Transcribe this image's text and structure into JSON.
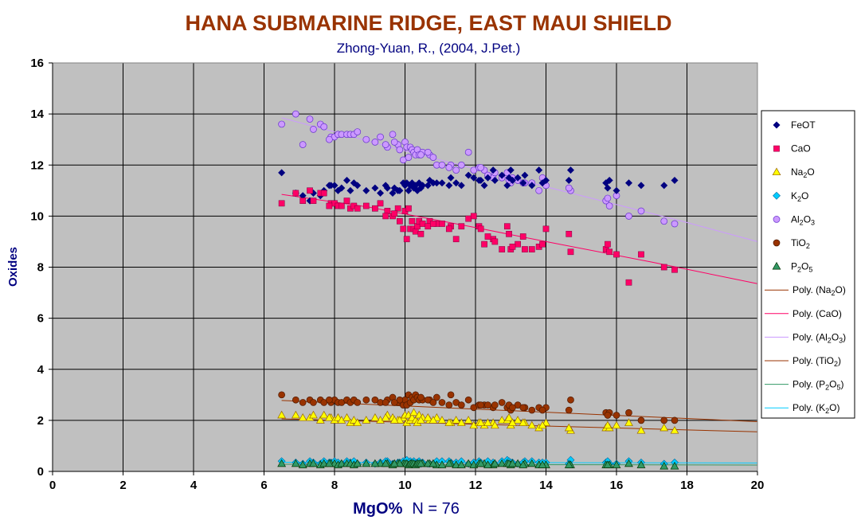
{
  "chart_data": {
    "type": "scatter",
    "title": "HANA SUBMARINE RIDGE, EAST MAUI SHIELD",
    "subtitle": "Zhong-Yuan, R., (2004, J.Pet.)",
    "xlabel": "MgO%",
    "xlabel_note": "N = 76",
    "ylabel": "Oxides",
    "xlim": [
      0,
      20
    ],
    "ylim": [
      0,
      16
    ],
    "x_ticks": [
      "0",
      "2",
      "4",
      "6",
      "8",
      "10",
      "12",
      "14",
      "16",
      "18",
      "20"
    ],
    "y_ticks": [
      "0",
      "2",
      "4",
      "6",
      "8",
      "10",
      "12",
      "14",
      "16"
    ],
    "grid": true,
    "legend_position": "right",
    "background_color": "#c0c0c0",
    "mgo": [
      6.5,
      6.9,
      7.1,
      7.3,
      7.4,
      7.6,
      7.7,
      7.9,
      8.0,
      8.1,
      8.2,
      8.35,
      8.45,
      8.55,
      8.65,
      9.3,
      9.5,
      9.65,
      9.8,
      9.95,
      10.0,
      10.05,
      10.1,
      10.15,
      10.2,
      10.25,
      10.3,
      10.35,
      10.4,
      10.5,
      10.7,
      10.9,
      11.3,
      11.8,
      11.95,
      12.1,
      12.25,
      12.5,
      12.75,
      12.9,
      13.0,
      13.2,
      13.4,
      13.8,
      14.7,
      15.7,
      15.8,
      16.35,
      16.7,
      17.35,
      17.65,
      9.45,
      9.85,
      10.45,
      11.25,
      11.45,
      12.55,
      12.95,
      13.35,
      14.65,
      15.75,
      8.9,
      10.65,
      11.05,
      13.05,
      9.15,
      7.85,
      12.35,
      10.8,
      14.0,
      16.0,
      13.6,
      12.15,
      9.7,
      11.6,
      13.9
    ],
    "series": [
      {
        "name": "FeOT",
        "color": "#000080",
        "marker": "diamond",
        "values": [
          11.7,
          10.9,
          10.8,
          10.6,
          10.9,
          10.8,
          11.0,
          11.2,
          11.2,
          11.0,
          11.1,
          11.4,
          11.0,
          11.3,
          11.2,
          10.9,
          11.1,
          10.9,
          11.0,
          11.3,
          11.2,
          11.3,
          11.0,
          11.2,
          11.3,
          11.1,
          11.2,
          11.0,
          11.3,
          11.2,
          11.4,
          11.3,
          11.5,
          11.6,
          11.5,
          11.4,
          11.2,
          11.8,
          11.6,
          11.2,
          11.8,
          11.5,
          11.6,
          11.8,
          11.8,
          11.3,
          11.4,
          11.3,
          11.2,
          11.2,
          11.4,
          11.2,
          11.0,
          11.1,
          11.2,
          11.3,
          11.4,
          11.5,
          11.3,
          11.4,
          11.1,
          11.0,
          11.2,
          11.3,
          11.4,
          11.1,
          11.2,
          11.5,
          11.3,
          11.4,
          11.0,
          11.2,
          11.4,
          11.1,
          11.2,
          11.3
        ]
      },
      {
        "name": "CaO",
        "color": "#ff0066",
        "marker": "square",
        "values": [
          10.5,
          10.9,
          10.6,
          11.0,
          10.6,
          10.9,
          10.9,
          10.5,
          10.5,
          10.4,
          10.4,
          10.6,
          10.3,
          10.4,
          10.3,
          10.5,
          10.2,
          10.0,
          10.3,
          9.5,
          10.2,
          9.1,
          10.3,
          9.5,
          9.8,
          9.5,
          9.4,
          9.6,
          9.8,
          9.7,
          9.8,
          9.7,
          9.6,
          9.9,
          10.0,
          9.6,
          8.9,
          9.1,
          8.7,
          9.6,
          8.7,
          8.9,
          8.7,
          8.8,
          8.6,
          8.7,
          8.6,
          7.4,
          8.5,
          8.0,
          7.9,
          10.0,
          9.8,
          9.3,
          9.5,
          9.1,
          9.0,
          9.3,
          9.2,
          9.3,
          8.9,
          10.4,
          9.6,
          9.7,
          8.8,
          10.3,
          10.4,
          9.2,
          9.7,
          9.5,
          8.5,
          8.7,
          9.5,
          10.1,
          9.6,
          8.9
        ]
      },
      {
        "name": "Na2O",
        "color": "#ffff00",
        "marker": "triangle",
        "values": [
          2.2,
          2.2,
          2.1,
          2.1,
          2.2,
          2.0,
          2.2,
          2.1,
          2.0,
          2.1,
          2.0,
          2.1,
          1.9,
          2.0,
          1.9,
          2.0,
          2.2,
          2.1,
          2.0,
          2.1,
          2.2,
          1.9,
          2.2,
          2.0,
          2.1,
          2.3,
          2.0,
          1.9,
          2.2,
          2.1,
          2.0,
          2.1,
          1.9,
          2.0,
          1.8,
          1.9,
          1.8,
          1.9,
          2.0,
          2.0,
          1.8,
          2.0,
          1.9,
          1.7,
          1.6,
          1.7,
          1.7,
          1.9,
          1.6,
          1.7,
          1.6,
          2.1,
          2.0,
          2.0,
          1.9,
          2.0,
          1.8,
          2.1,
          1.9,
          1.7,
          1.8,
          2.0,
          2.1,
          2.0,
          1.9,
          2.1,
          2.1,
          1.9,
          2.0,
          1.9,
          1.8,
          1.8,
          1.9,
          2.0,
          1.9,
          1.8
        ]
      },
      {
        "name": "K2O",
        "color": "#00ccff",
        "marker": "diamond",
        "values": [
          0.4,
          0.35,
          0.3,
          0.4,
          0.35,
          0.3,
          0.4,
          0.35,
          0.4,
          0.35,
          0.3,
          0.4,
          0.35,
          0.4,
          0.3,
          0.35,
          0.4,
          0.3,
          0.35,
          0.4,
          0.35,
          0.45,
          0.3,
          0.4,
          0.35,
          0.4,
          0.3,
          0.35,
          0.4,
          0.35,
          0.3,
          0.4,
          0.35,
          0.3,
          0.35,
          0.4,
          0.3,
          0.35,
          0.4,
          0.45,
          0.35,
          0.3,
          0.4,
          0.35,
          0.45,
          0.35,
          0.3,
          0.4,
          0.35,
          0.3,
          0.35,
          0.4,
          0.35,
          0.3,
          0.4,
          0.35,
          0.3,
          0.4,
          0.35,
          0.3,
          0.4,
          0.35,
          0.3,
          0.4,
          0.35,
          0.3,
          0.35,
          0.4,
          0.3,
          0.35,
          0.3,
          0.4,
          0.35,
          0.3,
          0.4,
          0.35
        ]
      },
      {
        "name": "Al2O3",
        "color": "#cc99ff",
        "marker": "circle",
        "values": [
          13.6,
          14.0,
          12.8,
          13.8,
          13.4,
          13.6,
          13.5,
          13.1,
          13.1,
          13.2,
          13.2,
          13.2,
          13.2,
          13.2,
          13.3,
          13.1,
          12.7,
          13.2,
          12.8,
          12.2,
          12.9,
          12.7,
          12.3,
          12.7,
          12.6,
          12.5,
          12.4,
          12.6,
          12.4,
          12.5,
          12.4,
          12.0,
          12.0,
          12.5,
          11.8,
          11.9,
          11.8,
          11.5,
          11.5,
          11.7,
          11.3,
          11.4,
          11.3,
          11.0,
          11.0,
          10.6,
          10.4,
          10.0,
          10.2,
          9.8,
          9.7,
          12.8,
          12.6,
          12.4,
          11.9,
          11.8,
          11.7,
          11.4,
          11.3,
          11.1,
          10.7,
          13.0,
          12.5,
          12.0,
          11.5,
          12.9,
          13.0,
          11.6,
          12.3,
          11.2,
          10.8,
          11.3,
          11.9,
          12.9,
          12.0,
          11.5
        ]
      },
      {
        "name": "TiO2",
        "color": "#993300",
        "marker": "circle",
        "values": [
          3.0,
          2.8,
          2.7,
          2.8,
          2.7,
          2.8,
          2.7,
          2.7,
          2.8,
          2.7,
          2.7,
          2.8,
          2.7,
          2.8,
          2.7,
          2.7,
          2.8,
          2.9,
          2.7,
          2.6,
          2.8,
          2.6,
          3.0,
          2.7,
          2.9,
          2.8,
          3.0,
          2.9,
          2.8,
          2.8,
          2.8,
          2.9,
          3.0,
          2.8,
          2.5,
          2.6,
          2.6,
          2.5,
          2.7,
          2.5,
          2.4,
          2.6,
          2.5,
          2.5,
          2.8,
          2.3,
          2.3,
          2.3,
          2.0,
          2.0,
          2.0,
          2.7,
          2.8,
          2.9,
          2.6,
          2.7,
          2.6,
          2.6,
          2.5,
          2.4,
          2.2,
          2.8,
          2.8,
          2.7,
          2.5,
          2.8,
          2.8,
          2.6,
          2.7,
          2.5,
          2.2,
          2.4,
          2.6,
          2.7,
          2.6,
          2.4
        ]
      },
      {
        "name": "P2O5",
        "color": "#339966",
        "marker": "triangle",
        "values": [
          0.3,
          0.3,
          0.25,
          0.3,
          0.3,
          0.25,
          0.3,
          0.3,
          0.3,
          0.25,
          0.3,
          0.3,
          0.3,
          0.25,
          0.3,
          0.3,
          0.3,
          0.25,
          0.3,
          0.3,
          0.3,
          0.3,
          0.25,
          0.3,
          0.3,
          0.3,
          0.25,
          0.3,
          0.3,
          0.3,
          0.3,
          0.25,
          0.3,
          0.3,
          0.25,
          0.3,
          0.3,
          0.25,
          0.3,
          0.3,
          0.25,
          0.3,
          0.3,
          0.25,
          0.25,
          0.25,
          0.25,
          0.3,
          0.25,
          0.2,
          0.2,
          0.3,
          0.3,
          0.3,
          0.3,
          0.25,
          0.3,
          0.3,
          0.25,
          0.25,
          0.25,
          0.3,
          0.3,
          0.25,
          0.3,
          0.3,
          0.3,
          0.25,
          0.3,
          0.25,
          0.25,
          0.3,
          0.3,
          0.3,
          0.25,
          0.25
        ]
      }
    ],
    "trendlines": [
      {
        "label": "Poly. (Na2O)",
        "color": "#993300",
        "points": [
          [
            6.5,
            2.06
          ],
          [
            20,
            1.55
          ]
        ]
      },
      {
        "label": "Poly. (CaO)",
        "color": "#ff0066",
        "points": [
          [
            6.5,
            10.85
          ],
          [
            9,
            10.35
          ],
          [
            12,
            9.55
          ],
          [
            14,
            9.0
          ],
          [
            17,
            8.2
          ],
          [
            20,
            7.35
          ]
        ]
      },
      {
        "label": "Poly. (Al2O3)",
        "color": "#cc99ff",
        "points": [
          [
            6.5,
            13.85
          ],
          [
            8,
            13.3
          ],
          [
            10,
            12.55
          ],
          [
            12,
            11.85
          ],
          [
            14,
            11.15
          ],
          [
            16,
            10.45
          ],
          [
            18,
            9.75
          ],
          [
            20,
            9.0
          ]
        ]
      },
      {
        "label": "Poly. (TiO2)",
        "color": "#993300",
        "points": [
          [
            6.5,
            2.78
          ],
          [
            20,
            1.95
          ]
        ]
      },
      {
        "label": "Poly. (P2O5)",
        "color": "#339966",
        "points": [
          [
            6.5,
            0.28
          ],
          [
            20,
            0.25
          ]
        ]
      },
      {
        "label": "Poly. (K2O)",
        "color": "#00ccff",
        "points": [
          [
            6.5,
            0.36
          ],
          [
            20,
            0.33
          ]
        ]
      }
    ],
    "legend": [
      {
        "kind": "marker",
        "series": 0,
        "base": "FeOT",
        "sub": "",
        "tail": "",
        "pre": "",
        "post": ""
      },
      {
        "kind": "marker",
        "series": 1,
        "base": "CaO",
        "sub": "",
        "tail": "",
        "pre": "",
        "post": ""
      },
      {
        "kind": "marker",
        "series": 2,
        "base": "Na",
        "sub": "2",
        "tail": "O",
        "pre": "",
        "post": ""
      },
      {
        "kind": "marker",
        "series": 3,
        "base": "K",
        "sub": "2",
        "tail": "O",
        "pre": "",
        "post": ""
      },
      {
        "kind": "marker",
        "series": 4,
        "base": "Al",
        "sub": "2",
        "tail": "O",
        "sub2": "3",
        "pre": "",
        "post": ""
      },
      {
        "kind": "marker",
        "series": 5,
        "base": "TiO",
        "sub": "2",
        "tail": "",
        "pre": "",
        "post": ""
      },
      {
        "kind": "marker",
        "series": 6,
        "base": "P",
        "sub": "2",
        "tail": "O",
        "sub2": "5",
        "pre": "",
        "post": ""
      },
      {
        "kind": "line",
        "trend": 0,
        "pre": "Poly. (",
        "base": "Na",
        "sub": "2",
        "tail": "O",
        "post": ")"
      },
      {
        "kind": "line",
        "trend": 1,
        "pre": "Poly. (",
        "base": "CaO",
        "sub": "",
        "tail": "",
        "post": ")"
      },
      {
        "kind": "line",
        "trend": 2,
        "pre": "Poly. (",
        "base": "Al",
        "sub": "2",
        "tail": "O",
        "sub2": "3",
        "post": ")"
      },
      {
        "kind": "line",
        "trend": 3,
        "pre": "Poly. (",
        "base": "TiO",
        "sub": "2",
        "tail": "",
        "post": ")"
      },
      {
        "kind": "line",
        "trend": 4,
        "pre": "Poly. (",
        "base": "P",
        "sub": "2",
        "tail": "O",
        "sub2": "5",
        "post": ")"
      },
      {
        "kind": "line",
        "trend": 5,
        "pre": "Poly. (",
        "base": "K",
        "sub": "2",
        "tail": "O",
        "post": ")"
      }
    ]
  }
}
